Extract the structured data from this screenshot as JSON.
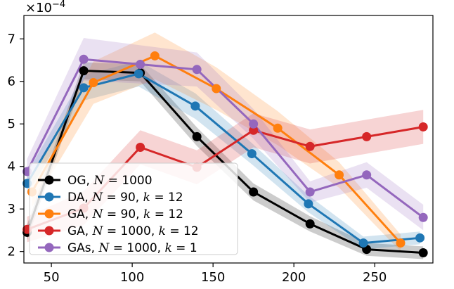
{
  "chart_data": {
    "type": "line",
    "title": "",
    "xlabel": "",
    "ylabel": "",
    "y_scale_label": "×10",
    "y_scale_exponent": "−4",
    "xlim": [
      33,
      286
    ],
    "ylim": [
      1.73,
      7.55
    ],
    "x_ticks": [
      50,
      100,
      150,
      200,
      250
    ],
    "y_ticks": [
      2,
      3,
      4,
      5,
      6,
      7
    ],
    "grid": false,
    "legend_position": "lower-left",
    "series": [
      {
        "name": "OG, N = 1000",
        "label_parts": [
          "OG, ",
          "N",
          " = 1000"
        ],
        "color": "#000000",
        "x": [
          35,
          70,
          105,
          140,
          175,
          210,
          245,
          280
        ],
        "y": [
          2.45,
          6.25,
          6.2,
          4.7,
          3.4,
          2.65,
          2.05,
          1.97
        ],
        "band": [
          0.18,
          0.2,
          0.2,
          0.22,
          0.2,
          0.18,
          0.15,
          0.15
        ]
      },
      {
        "name": "DA, N = 90, k = 12",
        "label_parts": [
          "DA, ",
          "N",
          " = 90, ",
          "k",
          " = 12"
        ],
        "color": "#1f77b4",
        "x": [
          35,
          70,
          104,
          139,
          174,
          209,
          243,
          278
        ],
        "y": [
          3.6,
          5.85,
          6.18,
          5.42,
          4.3,
          3.12,
          2.2,
          2.32
        ],
        "band": [
          0.25,
          0.3,
          0.3,
          0.3,
          0.25,
          0.2,
          0.15,
          0.15
        ]
      },
      {
        "name": "GA, N = 90, k = 12",
        "label_parts": [
          "GA, ",
          "N",
          " = 90, ",
          "k",
          " = 12"
        ],
        "color": "#ff7f0e",
        "x": [
          38,
          76,
          114,
          152,
          190,
          228,
          266
        ],
        "y": [
          3.4,
          5.97,
          6.6,
          5.83,
          4.9,
          3.8,
          2.2
        ],
        "band": [
          0.35,
          0.5,
          0.55,
          0.5,
          0.4,
          0.3,
          0.2
        ]
      },
      {
        "name": "GA, N = 1000, k = 12",
        "label_parts": [
          "GA, ",
          "N",
          " = 1000, ",
          "k",
          " = 12"
        ],
        "color": "#d62728",
        "x": [
          35,
          70,
          105,
          140,
          175,
          210,
          245,
          280
        ],
        "y": [
          2.52,
          3.02,
          4.45,
          3.98,
          4.85,
          4.47,
          4.7,
          4.93
        ],
        "band": [
          0.3,
          0.4,
          0.4,
          0.4,
          0.4,
          0.4,
          0.4,
          0.4
        ]
      },
      {
        "name": "GAs, N = 1000, k = 1",
        "label_parts": [
          "GAs, ",
          "N",
          " = 1000, ",
          "k",
          " = 1"
        ],
        "color": "#9467bd",
        "x": [
          35,
          70,
          105,
          140,
          175,
          210,
          245,
          280
        ],
        "y": [
          3.88,
          6.52,
          6.4,
          6.28,
          5.0,
          3.4,
          3.8,
          2.8
        ],
        "band": [
          0.3,
          0.5,
          0.45,
          0.4,
          0.35,
          0.25,
          0.3,
          0.3
        ]
      }
    ]
  }
}
